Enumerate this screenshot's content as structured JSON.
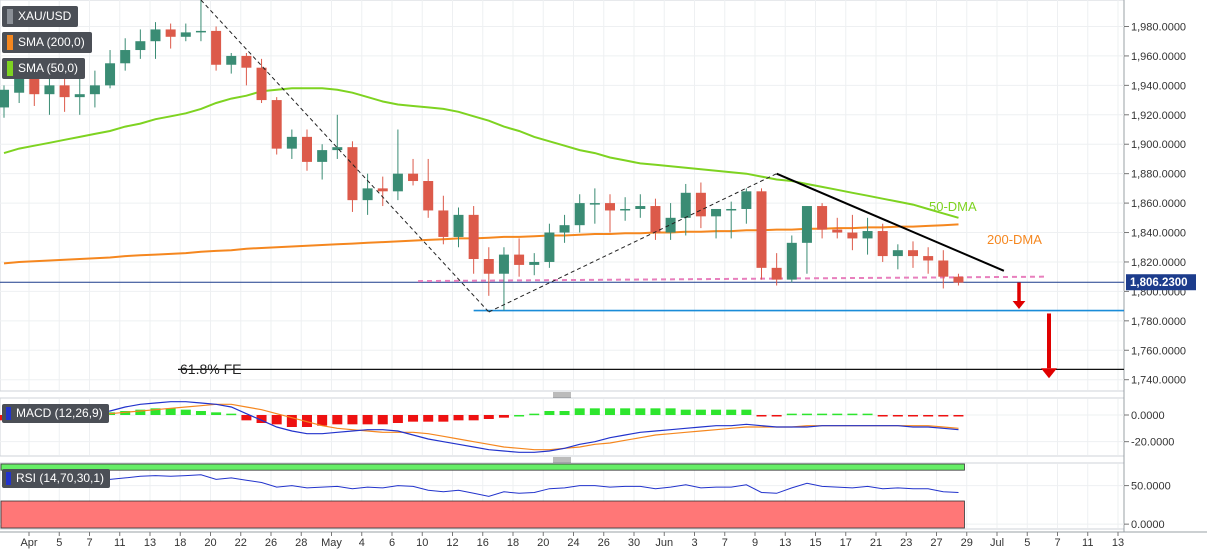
{
  "legend": {
    "symbol": "XAU/USD",
    "sma200": "SMA (200,0)",
    "sma50": "SMA (50,0)",
    "macd": "MACD (12,26,9)",
    "rsi": "RSI (14,70,30,1)"
  },
  "colors": {
    "bull": "#3a8c74",
    "bear": "#dc5a4a",
    "sma50": "#7ed321",
    "sma200": "#f5871f",
    "price_line": "#1c3c8c",
    "support": "#1a8cd8",
    "pink_dash": "#e87fbd",
    "trend": "#000000",
    "arrow": "#e00000",
    "macd_line": "#2233cc",
    "signal_line": "#f5871f",
    "hist_pos": "#2ee52e",
    "hist_neg": "#ee1111",
    "rsi_line": "#2233cc",
    "rsi_over": "#66ee66",
    "rsi_under": "#ff7777"
  },
  "annotations": {
    "dma50": "50-DMA",
    "dma200": "200-DMA",
    "fe": "61.8% FE",
    "last_price": "1,806.2300"
  },
  "chart_data": [
    {
      "type": "candlestick",
      "title": "XAU/USD",
      "ylim": [
        1733,
        1998
      ],
      "y_ticks": [
        1740,
        1760,
        1780,
        1800,
        1820,
        1840,
        1860,
        1880,
        1900,
        1920,
        1940,
        1960,
        1980
      ],
      "y_tick_labels": [
        "1,740.0000",
        "1,760.0000",
        "1,780.0000",
        "1,800.0000",
        "1,820.0000",
        "1,840.0000",
        "1,860.0000",
        "1,880.0000",
        "1,900.0000",
        "1,920.0000",
        "1,940.0000",
        "1,960.0000",
        "1,980.0000"
      ],
      "x_tick_labels": [
        "Apr",
        "5",
        "7",
        "11",
        "13",
        "18",
        "20",
        "22",
        "26",
        "28",
        "May",
        "4",
        "6",
        "10",
        "12",
        "16",
        "18",
        "20",
        "24",
        "26",
        "30",
        "Jun",
        "3",
        "7",
        "9",
        "13",
        "15",
        "17",
        "21",
        "23",
        "27",
        "29",
        "Jul",
        "5",
        "7",
        "11",
        "13"
      ],
      "candles_ohlc": [
        [
          1925,
          1940,
          1918,
          1937
        ],
        [
          1935,
          1950,
          1928,
          1945
        ],
        [
          1945,
          1952,
          1926,
          1934
        ],
        [
          1934,
          1946,
          1920,
          1940
        ],
        [
          1940,
          1950,
          1922,
          1932
        ],
        [
          1932,
          1945,
          1920,
          1934
        ],
        [
          1934,
          1950,
          1925,
          1940
        ],
        [
          1940,
          1964,
          1938,
          1955
        ],
        [
          1955,
          1972,
          1950,
          1964
        ],
        [
          1964,
          1978,
          1958,
          1970
        ],
        [
          1970,
          1983,
          1958,
          1978
        ],
        [
          1978,
          1982,
          1965,
          1973
        ],
        [
          1973,
          1982,
          1970,
          1976
        ],
        [
          1976,
          1998,
          1970,
          1977
        ],
        [
          1977,
          1980,
          1950,
          1954
        ],
        [
          1954,
          1962,
          1948,
          1960
        ],
        [
          1960,
          1962,
          1940,
          1952
        ],
        [
          1952,
          1958,
          1928,
          1930
        ],
        [
          1930,
          1932,
          1893,
          1897
        ],
        [
          1897,
          1910,
          1890,
          1905
        ],
        [
          1905,
          1910,
          1882,
          1888
        ],
        [
          1888,
          1900,
          1876,
          1896
        ],
        [
          1896,
          1920,
          1890,
          1898
        ],
        [
          1898,
          1902,
          1854,
          1862
        ],
        [
          1862,
          1880,
          1852,
          1870
        ],
        [
          1870,
          1878,
          1858,
          1868
        ],
        [
          1868,
          1910,
          1862,
          1880
        ],
        [
          1880,
          1890,
          1872,
          1875
        ],
        [
          1875,
          1890,
          1850,
          1855
        ],
        [
          1855,
          1865,
          1832,
          1837
        ],
        [
          1837,
          1857,
          1830,
          1852
        ],
        [
          1852,
          1858,
          1812,
          1822
        ],
        [
          1822,
          1830,
          1797,
          1812
        ],
        [
          1812,
          1830,
          1787,
          1825
        ],
        [
          1825,
          1836,
          1810,
          1818
        ],
        [
          1818,
          1826,
          1811,
          1820
        ],
        [
          1820,
          1846,
          1816,
          1840
        ],
        [
          1840,
          1852,
          1833,
          1845
        ],
        [
          1845,
          1866,
          1840,
          1860
        ],
        [
          1860,
          1870,
          1846,
          1860
        ],
        [
          1860,
          1866,
          1840,
          1855
        ],
        [
          1855,
          1864,
          1848,
          1856
        ],
        [
          1856,
          1866,
          1850,
          1858
        ],
        [
          1858,
          1863,
          1835,
          1840
        ],
        [
          1840,
          1860,
          1835,
          1850
        ],
        [
          1850,
          1873,
          1838,
          1867
        ],
        [
          1867,
          1874,
          1843,
          1851
        ],
        [
          1851,
          1856,
          1836,
          1856
        ],
        [
          1856,
          1861,
          1836,
          1856
        ],
        [
          1856,
          1870,
          1846,
          1868
        ],
        [
          1868,
          1870,
          1808,
          1816
        ],
        [
          1816,
          1826,
          1804,
          1808
        ],
        [
          1808,
          1838,
          1806,
          1833
        ],
        [
          1833,
          1858,
          1812,
          1858
        ],
        [
          1858,
          1860,
          1836,
          1842
        ],
        [
          1842,
          1850,
          1836,
          1840
        ],
        [
          1840,
          1852,
          1828,
          1836
        ],
        [
          1836,
          1850,
          1825,
          1841
        ],
        [
          1841,
          1846,
          1820,
          1824
        ],
        [
          1824,
          1832,
          1815,
          1828
        ],
        [
          1828,
          1834,
          1816,
          1824
        ],
        [
          1824,
          1830,
          1812,
          1821
        ],
        [
          1821,
          1828,
          1802,
          1810
        ],
        [
          1810,
          1812,
          1804,
          1806
        ]
      ],
      "sma50": [
        1894,
        1897,
        1899,
        1901,
        1903,
        1905,
        1907,
        1909,
        1912,
        1914,
        1917,
        1919,
        1921,
        1924,
        1928,
        1931,
        1933,
        1936,
        1937,
        1938,
        1938,
        1938,
        1937,
        1935,
        1932,
        1929,
        1927,
        1926,
        1925,
        1924,
        1922,
        1919,
        1916,
        1912,
        1909,
        1905,
        1902,
        1899,
        1896,
        1894,
        1891,
        1889,
        1887,
        1886,
        1885,
        1884,
        1883,
        1882,
        1881,
        1880,
        1878,
        1876,
        1875,
        1873,
        1871,
        1869,
        1867,
        1865,
        1863,
        1861,
        1859,
        1856,
        1853,
        1850
      ],
      "sma200": [
        1819,
        1820,
        1820.5,
        1821,
        1821.5,
        1822,
        1822.5,
        1823,
        1824,
        1824.5,
        1825,
        1825.5,
        1826,
        1827,
        1827.5,
        1828,
        1829,
        1829.5,
        1830,
        1830.5,
        1831,
        1831.5,
        1832,
        1832.5,
        1833,
        1833.5,
        1834,
        1834.5,
        1835,
        1835.5,
        1836,
        1836,
        1836.5,
        1837,
        1837,
        1837.5,
        1838,
        1838,
        1838.5,
        1839,
        1839,
        1839.5,
        1839.5,
        1840,
        1840,
        1840.5,
        1840.5,
        1841,
        1841,
        1841.5,
        1841.5,
        1842,
        1842,
        1842.5,
        1842.5,
        1843,
        1843,
        1843.5,
        1843.5,
        1844,
        1844,
        1844.5,
        1845,
        1845.5
      ],
      "last_price": 1806.23,
      "support_level": 1787,
      "fe_level": 1747,
      "pink_channel_level": [
        1807,
        1810
      ]
    },
    {
      "type": "bar+line",
      "title": "MACD (12,26,9)",
      "ylim": [
        -30,
        12
      ],
      "y_ticks": [
        0,
        -20
      ],
      "y_tick_labels": [
        "0.0000",
        "-20.0000"
      ],
      "macd": [
        -5,
        -4,
        -3,
        -1,
        0,
        1,
        2,
        3,
        6,
        8,
        9,
        10,
        10,
        9,
        8,
        6,
        1,
        -4,
        -9,
        -12,
        -14,
        -14,
        -13,
        -12,
        -11,
        -11,
        -12,
        -15,
        -18,
        -20,
        -22,
        -24,
        -26,
        -27,
        -28,
        -28,
        -27,
        -25,
        -22,
        -20,
        -17,
        -15,
        -13,
        -12,
        -11,
        -10,
        -9,
        -8,
        -8,
        -7,
        -8,
        -9,
        -9,
        -9,
        -8,
        -8,
        -8,
        -8,
        -8,
        -8,
        -9,
        -9,
        -10,
        -11
      ],
      "signal": [
        -1,
        -1,
        -1,
        0,
        0,
        0,
        1,
        1,
        2,
        3,
        4,
        5,
        6,
        7,
        8,
        8,
        6,
        4,
        1,
        -2,
        -5,
        -8,
        -10,
        -11,
        -12,
        -13,
        -13,
        -13,
        -14,
        -16,
        -18,
        -20,
        -22,
        -24,
        -25,
        -26,
        -26,
        -25,
        -24,
        -22,
        -21,
        -19,
        -17,
        -15,
        -14,
        -13,
        -12,
        -11,
        -10,
        -9,
        -9,
        -9,
        -9,
        -8,
        -8,
        -8,
        -8,
        -8,
        -8,
        -8,
        -8,
        -8,
        -9,
        -10
      ],
      "histogram": [
        -4,
        -4,
        -3,
        -1,
        0,
        1,
        1,
        2,
        3,
        4,
        5,
        5,
        4,
        3,
        2,
        1,
        -4,
        -6,
        -7,
        -9,
        -9,
        -8,
        -7,
        -7,
        -7,
        -7,
        -6,
        -5,
        -5,
        -5,
        -4,
        -4,
        -3,
        -2,
        0,
        1,
        3,
        3,
        5,
        5,
        5,
        5,
        5,
        5,
        5,
        4,
        4,
        4,
        4,
        4,
        -1,
        -1,
        1,
        1,
        1,
        1,
        1,
        1,
        -1,
        -1,
        -1,
        -1,
        -1,
        -1
      ]
    },
    {
      "type": "line",
      "title": "RSI (14,70,30,1)",
      "ylim": [
        -5,
        78
      ],
      "y_ticks": [
        0,
        50
      ],
      "y_tick_labels": [
        "0.0000",
        "50.0000"
      ],
      "overbought": 70,
      "oversold": 30,
      "rsi": [
        55,
        56,
        54,
        55,
        53,
        54,
        55,
        58,
        60,
        62,
        63,
        62,
        63,
        64,
        58,
        60,
        57,
        54,
        48,
        50,
        47,
        48,
        49,
        46,
        48,
        47,
        50,
        49,
        44,
        42,
        44,
        40,
        36,
        42,
        40,
        41,
        46,
        47,
        50,
        50,
        48,
        49,
        49,
        46,
        48,
        51,
        47,
        48,
        48,
        51,
        41,
        40,
        47,
        53,
        49,
        48,
        47,
        49,
        46,
        47,
        46,
        46,
        42,
        41
      ]
    }
  ]
}
